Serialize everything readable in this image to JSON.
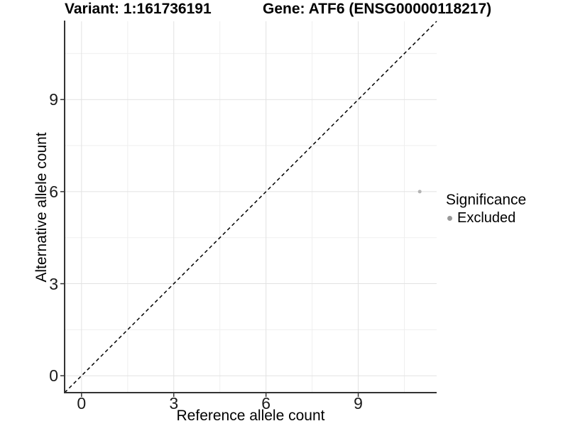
{
  "chart_data": {
    "type": "scatter",
    "title_left": "Variant: 1:161736191",
    "title_right": "Gene: ATF6 (ENSG00000118217)",
    "xlabel": "Reference allele count",
    "ylabel": "Alternative allele count",
    "xlim": [
      -0.55,
      11.55
    ],
    "ylim": [
      -0.55,
      11.55
    ],
    "x_ticks": [
      0,
      3,
      6,
      9
    ],
    "y_ticks": [
      0,
      3,
      6,
      9
    ],
    "x_minor_ticks": [
      1.5,
      4.5,
      7.5,
      10.5
    ],
    "y_minor_ticks": [
      1.5,
      4.5,
      7.5,
      10.5
    ],
    "grid": true,
    "series": [
      {
        "name": "Excluded",
        "color": "#b3b3b3",
        "point_radius": 2.5,
        "points": [
          {
            "x": 11,
            "y": 6
          }
        ]
      }
    ],
    "identity_line": {
      "style": "dashed",
      "color": "#000000",
      "from": [
        -0.55,
        -0.55
      ],
      "to": [
        11.55,
        11.55
      ]
    },
    "legend": {
      "position": "right",
      "title": "Significance",
      "items": [
        {
          "label": "Excluded",
          "color": "#999999"
        }
      ]
    },
    "colors": {
      "background": "#ffffff",
      "grid_major": "#e2e2e2",
      "grid_minor": "#efefef",
      "axis_line": "#333333",
      "tick_mark": "#333333"
    }
  }
}
